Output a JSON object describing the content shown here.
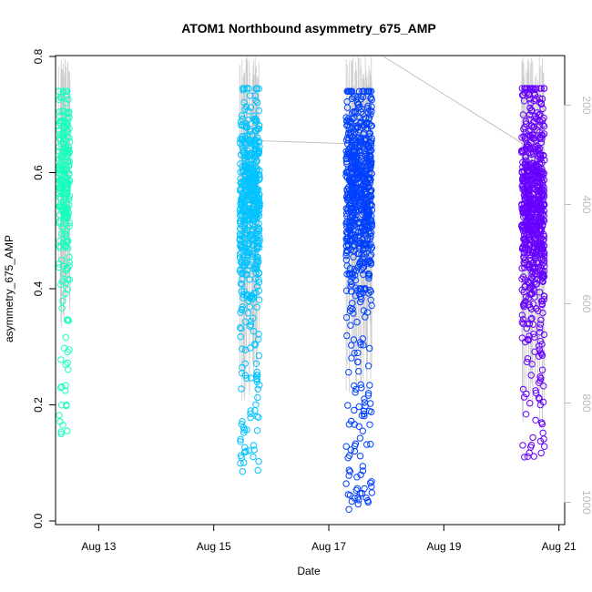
{
  "chart_data": {
    "type": "scatter",
    "title": "ATOM1 Northbound asymmetry_675_AMP",
    "xlabel": "Date",
    "ylabel": "asymmetry_675_AMP",
    "ylim": [
      0.0,
      0.8
    ],
    "xlim": [
      12.25,
      21.1
    ],
    "x_unit": "day of August",
    "y_ticks": [
      "0.0",
      "0.2",
      "0.4",
      "0.6",
      "0.8"
    ],
    "y_tick_values": [
      0.0,
      0.2,
      0.4,
      0.6,
      0.8
    ],
    "x_ticks": [
      "Aug 13",
      "Aug 15",
      "Aug 17",
      "Aug 19",
      "Aug 21"
    ],
    "x_tick_values": [
      13,
      15,
      17,
      19,
      21
    ],
    "secondary_axis": {
      "color": "#bbbbbb",
      "reversed": true,
      "ylim": [
        100,
        1045
      ],
      "ticks": [
        "200",
        "400",
        "600",
        "800",
        "1000"
      ],
      "tick_values": [
        200,
        400,
        600,
        800,
        1000
      ]
    },
    "series": [
      {
        "name": "Aug 12 cluster",
        "color": "#19ffc0",
        "x_start": 12.3,
        "x_end": 12.5,
        "y_min": 0.15,
        "y_max": 0.74,
        "core_center": 0.6,
        "core_spread": 0.07,
        "count": 260
      },
      {
        "name": "Aug 15 cluster",
        "color": "#00c3ff",
        "x_start": 15.45,
        "x_end": 15.8,
        "y_min": 0.085,
        "y_max": 0.745,
        "core_center": 0.56,
        "core_spread": 0.09,
        "count": 520
      },
      {
        "name": "Aug 17 cluster",
        "color": "#0040ff",
        "x_start": 17.3,
        "x_end": 17.75,
        "y_min": 0.02,
        "y_max": 0.74,
        "core_center": 0.58,
        "core_spread": 0.09,
        "count": 720
      },
      {
        "name": "Aug 20 cluster",
        "color": "#6600ff",
        "x_start": 20.35,
        "x_end": 20.75,
        "y_min": 0.11,
        "y_max": 0.745,
        "core_center": 0.55,
        "core_spread": 0.1,
        "count": 680
      }
    ],
    "gray_line_color": "#cccccc",
    "gray_line_connectors": [
      {
        "x1": 15.75,
        "y1": 0.655,
        "x2": 17.3,
        "y2": 0.65
      },
      {
        "x1": 17.95,
        "y1": 0.8,
        "x2": 20.45,
        "y2": 0.645
      }
    ]
  }
}
